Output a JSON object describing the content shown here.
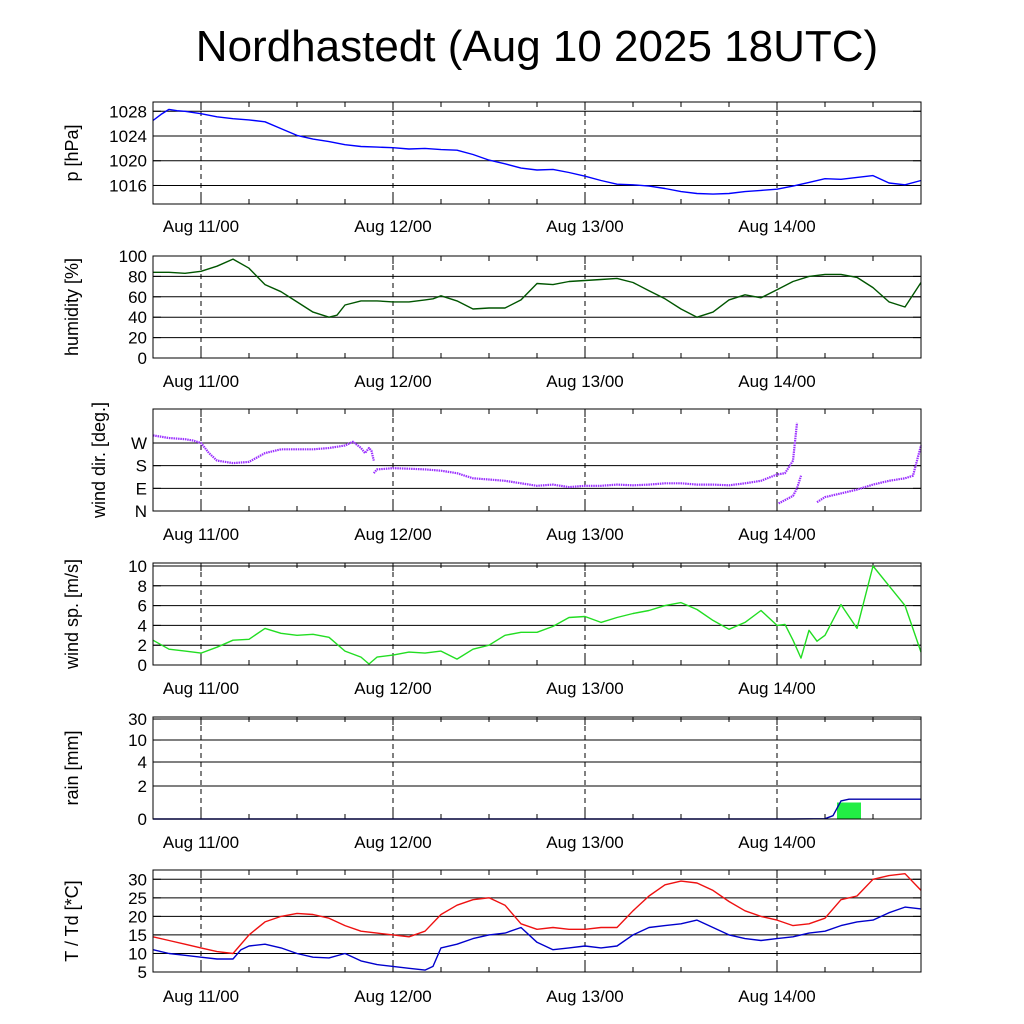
{
  "title": "Nordhastedt (Aug 10 2025 18UTC)",
  "colors": {
    "pressure": "#0000ff",
    "humidity": "#005500",
    "wind_dir": "#9b30ff",
    "wind_speed": "#22dd22",
    "rain_bar": "#22ee44",
    "rain_line": "#0000aa",
    "temperature": "#ee1111",
    "dewpoint": "#0000cc"
  },
  "chart_data": [
    {
      "type": "line",
      "ylabel": "p [hPa]",
      "x_unit": "hours since Aug 10 18UTC",
      "xlim": [
        0,
        96
      ],
      "x_ticks": [
        6,
        30,
        54,
        78
      ],
      "x_tick_labels": [
        "Aug 11/00",
        "Aug 12/00",
        "Aug 13/00",
        "Aug 14/00"
      ],
      "ylim": [
        1013,
        1029.5
      ],
      "yticks": [
        1016,
        1020,
        1024,
        1028
      ],
      "ytick_labels": [
        "1016",
        "1020",
        "1024",
        "1028"
      ],
      "series": [
        {
          "color": "#0000ff",
          "x": [
            0,
            1,
            2,
            3,
            4,
            6,
            8,
            10,
            12,
            14,
            16,
            18,
            20,
            22,
            24,
            26,
            28,
            30,
            32,
            34,
            36,
            38,
            40,
            42,
            44,
            46,
            48,
            50,
            52,
            54,
            56,
            58,
            60,
            62,
            64,
            66,
            68,
            70,
            72,
            74,
            76,
            78,
            80,
            82,
            84,
            86,
            88,
            90,
            92,
            94,
            96
          ],
          "y": [
            1026.5,
            1027.5,
            1028.3,
            1028.1,
            1028.0,
            1027.6,
            1027.1,
            1026.8,
            1026.6,
            1026.3,
            1025.2,
            1024.1,
            1023.5,
            1023.1,
            1022.6,
            1022.3,
            1022.2,
            1022.1,
            1021.9,
            1022.0,
            1021.8,
            1021.7,
            1021.0,
            1020.1,
            1019.5,
            1018.8,
            1018.5,
            1018.6,
            1018.1,
            1017.5,
            1016.8,
            1016.2,
            1016.1,
            1015.9,
            1015.5,
            1015.0,
            1014.7,
            1014.6,
            1014.7,
            1015.0,
            1015.2,
            1015.4,
            1015.9,
            1016.5,
            1017.1,
            1017.0,
            1017.3,
            1017.6,
            1016.4,
            1016.1,
            1016.8
          ]
        }
      ]
    },
    {
      "type": "line",
      "ylabel": "humidity [%]",
      "x_unit": "hours since Aug 10 18UTC",
      "xlim": [
        0,
        96
      ],
      "x_ticks": [
        6,
        30,
        54,
        78
      ],
      "x_tick_labels": [
        "Aug 11/00",
        "Aug 12/00",
        "Aug 13/00",
        "Aug 14/00"
      ],
      "ylim": [
        0,
        100
      ],
      "yticks": [
        0,
        20,
        40,
        60,
        80,
        100
      ],
      "ytick_labels": [
        "0",
        "20",
        "40",
        "60",
        "80",
        "100"
      ],
      "series": [
        {
          "color": "#005500",
          "x": [
            0,
            2,
            4,
            6,
            8,
            10,
            12,
            14,
            16,
            18,
            20,
            22,
            23,
            24,
            26,
            28,
            30,
            32,
            34,
            35,
            36,
            38,
            40,
            42,
            44,
            46,
            48,
            50,
            52,
            54,
            56,
            58,
            60,
            62,
            64,
            66,
            68,
            70,
            72,
            74,
            76,
            78,
            80,
            82,
            84,
            86,
            88,
            90,
            92,
            94,
            96
          ],
          "y": [
            84,
            84,
            83,
            85,
            90,
            97,
            88,
            72,
            65,
            55,
            45,
            40,
            42,
            52,
            56,
            56,
            55,
            55,
            57,
            58,
            61,
            56,
            48,
            49,
            49,
            57,
            73,
            72,
            75,
            76,
            77,
            78,
            74,
            66,
            58,
            48,
            40,
            45,
            57,
            62,
            59,
            67,
            75,
            80,
            82,
            82,
            79,
            69,
            55,
            50,
            74
          ]
        }
      ]
    },
    {
      "type": "scatter",
      "ylabel": "wind dir. [deg.]",
      "x_unit": "hours since Aug 10 18UTC",
      "xlim": [
        0,
        96
      ],
      "x_ticks": [
        6,
        30,
        54,
        78
      ],
      "x_tick_labels": [
        "Aug 11/00",
        "Aug 12/00",
        "Aug 13/00",
        "Aug 14/00"
      ],
      "ylim": [
        0,
        405
      ],
      "yticks": [
        0,
        90,
        180,
        270
      ],
      "ytick_labels": [
        "N",
        "E",
        "S",
        "W"
      ],
      "series": [
        {
          "color": "#9b30ff",
          "segments": [
            {
              "x": [
                0,
                2,
                4,
                5,
                6,
                7,
                8,
                10,
                12,
                14,
                16,
                18,
                20,
                22,
                24,
                25,
                26,
                26.5,
                27,
                27.3,
                27.6
              ],
              "y": [
                300,
                290,
                285,
                280,
                270,
                230,
                200,
                190,
                195,
                230,
                245,
                245,
                245,
                250,
                260,
                275,
                250,
                230,
                250,
                240,
                200
              ]
            },
            {
              "x": [
                27.6,
                28,
                30,
                32,
                34,
                36,
                38,
                40,
                42,
                44,
                46,
                48,
                50,
                52,
                54,
                56,
                58,
                60,
                62,
                64,
                66,
                68,
                70,
                72,
                74,
                76,
                78,
                79,
                80,
                80.5
              ],
              "y": [
                150,
                165,
                170,
                168,
                165,
                160,
                150,
                130,
                125,
                120,
                110,
                100,
                105,
                95,
                100,
                100,
                105,
                102,
                105,
                110,
                110,
                105,
                105,
                102,
                110,
                120,
                145,
                150,
                200,
                350
              ]
            },
            {
              "x": [
                78.2,
                80,
                80.5,
                81
              ],
              "y": [
                30,
                60,
                90,
                140
              ]
            },
            {
              "x": [
                83,
                84,
                86,
                88,
                90,
                92,
                94,
                95,
                96
              ],
              "y": [
                35,
                55,
                70,
                85,
                105,
                120,
                130,
                140,
                260
              ]
            }
          ]
        }
      ]
    },
    {
      "type": "line",
      "ylabel": "wind sp. [m/s]",
      "x_unit": "hours since Aug 10 18UTC",
      "xlim": [
        0,
        96
      ],
      "x_ticks": [
        6,
        30,
        54,
        78
      ],
      "x_tick_labels": [
        "Aug 11/00",
        "Aug 12/00",
        "Aug 13/00",
        "Aug 14/00"
      ],
      "ylim": [
        0,
        10.3
      ],
      "yticks": [
        0,
        2,
        4,
        6,
        8,
        10
      ],
      "ytick_labels": [
        "0",
        "2",
        "4",
        "6",
        "8",
        "10"
      ],
      "series": [
        {
          "color": "#22dd22",
          "x": [
            0,
            2,
            4,
            6,
            8,
            10,
            12,
            14,
            16,
            18,
            20,
            22,
            24,
            26,
            27,
            28,
            30,
            32,
            34,
            36,
            38,
            40,
            42,
            44,
            46,
            48,
            50,
            52,
            54,
            56,
            58,
            60,
            62,
            64,
            66,
            68,
            70,
            72,
            74,
            76,
            78,
            79,
            80,
            81,
            82,
            83,
            84,
            86,
            88,
            90,
            92,
            94,
            96
          ],
          "y": [
            2.5,
            1.6,
            1.4,
            1.2,
            1.8,
            2.5,
            2.6,
            3.7,
            3.2,
            3.0,
            3.1,
            2.8,
            1.4,
            0.8,
            0.1,
            0.8,
            1.0,
            1.3,
            1.2,
            1.4,
            0.6,
            1.6,
            2.0,
            3.0,
            3.3,
            3.3,
            3.9,
            4.8,
            4.9,
            4.3,
            4.8,
            5.2,
            5.5,
            6.0,
            6.3,
            5.6,
            4.5,
            3.6,
            4.3,
            5.5,
            4.0,
            4.1,
            2.5,
            0.7,
            3.5,
            2.4,
            3.0,
            6.1,
            3.7,
            10.0,
            8.0,
            6.0,
            1.3
          ]
        }
      ]
    },
    {
      "type": "bar",
      "ylabel": "rain [mm]",
      "x_unit": "hours since Aug 10 18UTC",
      "xlim": [
        0,
        96
      ],
      "x_ticks": [
        6,
        30,
        54,
        78
      ],
      "x_tick_labels": [
        "Aug 11/00",
        "Aug 12/00",
        "Aug 13/00",
        "Aug 14/00"
      ],
      "yticks": [
        0,
        2,
        4,
        10,
        30
      ],
      "ytick_labels": [
        "0",
        "2",
        "4",
        "10",
        "30"
      ],
      "ytick_levels": [
        0,
        0.33,
        0.57,
        0.79,
        1.0
      ],
      "bars": {
        "color": "#22ee44",
        "x_start": [
          85.5
        ],
        "x_end": [
          88.5
        ],
        "values": [
          1.0
        ]
      },
      "series": [
        {
          "color": "#0000aa",
          "x": [
            0,
            80,
            84,
            85,
            86,
            87,
            96
          ],
          "y": [
            0,
            0,
            0.02,
            0.2,
            1.1,
            1.2,
            1.2
          ]
        }
      ]
    },
    {
      "type": "line",
      "ylabel": "T / Td [*C]",
      "x_unit": "hours since Aug 10 18UTC",
      "xlim": [
        0,
        96
      ],
      "x_ticks": [
        6,
        30,
        54,
        78
      ],
      "x_tick_labels": [
        "Aug 11/00",
        "Aug 12/00",
        "Aug 13/00",
        "Aug 14/00"
      ],
      "ylim": [
        5,
        32.5
      ],
      "yticks": [
        5,
        10,
        15,
        20,
        25,
        30
      ],
      "ytick_labels": [
        "5",
        "10",
        "15",
        "20",
        "25",
        "30"
      ],
      "series": [
        {
          "color": "#ee1111",
          "x": [
            0,
            2,
            4,
            6,
            8,
            10,
            12,
            14,
            16,
            18,
            20,
            22,
            24,
            26,
            28,
            30,
            32,
            34,
            36,
            38,
            40,
            42,
            44,
            46,
            48,
            50,
            52,
            54,
            56,
            58,
            60,
            62,
            64,
            66,
            68,
            70,
            72,
            74,
            76,
            78,
            80,
            82,
            84,
            86,
            88,
            90,
            92,
            94,
            96
          ],
          "y": [
            14.5,
            13.5,
            12.5,
            11.5,
            10.5,
            10.0,
            15.0,
            18.5,
            20.0,
            20.8,
            20.5,
            19.5,
            17.5,
            16.0,
            15.5,
            15.0,
            14.5,
            16.0,
            20.5,
            23.0,
            24.5,
            25.0,
            23.0,
            18.0,
            16.5,
            17.0,
            16.5,
            16.5,
            17.0,
            17.0,
            21.5,
            25.5,
            28.5,
            29.5,
            29.0,
            27.0,
            24.0,
            21.5,
            20.0,
            19.0,
            17.5,
            18.0,
            19.5,
            24.5,
            25.5,
            30.0,
            31.0,
            31.5,
            27.0
          ]
        },
        {
          "color": "#0000cc",
          "x": [
            0,
            2,
            4,
            6,
            8,
            10,
            11,
            12,
            14,
            16,
            18,
            20,
            22,
            24,
            26,
            28,
            30,
            32,
            34,
            35,
            36,
            38,
            40,
            42,
            44,
            46,
            48,
            50,
            52,
            54,
            56,
            58,
            60,
            62,
            64,
            66,
            68,
            70,
            72,
            74,
            76,
            78,
            80,
            82,
            84,
            86,
            88,
            90,
            92,
            94,
            96
          ],
          "y": [
            11.0,
            10.0,
            9.5,
            9.0,
            8.5,
            8.5,
            11.0,
            12.0,
            12.5,
            11.5,
            10.0,
            9.0,
            8.8,
            10.0,
            8.0,
            7.0,
            6.5,
            6.0,
            5.5,
            6.5,
            11.5,
            12.5,
            14.0,
            15.0,
            15.5,
            17.0,
            13.0,
            11.0,
            11.5,
            12.0,
            11.5,
            12.0,
            15.0,
            17.0,
            17.5,
            18.0,
            19.0,
            17.0,
            15.0,
            14.0,
            13.5,
            14.0,
            14.5,
            15.5,
            16.0,
            17.5,
            18.5,
            19.0,
            21.0,
            22.5,
            22.0
          ]
        }
      ]
    }
  ]
}
